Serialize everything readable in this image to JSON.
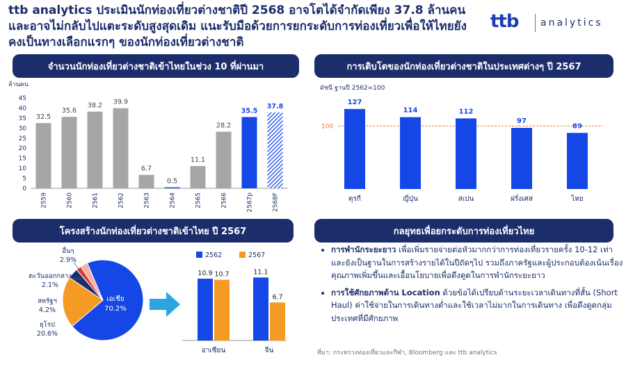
{
  "headline": "ttb analytics ประเมินนักท่องเที่ยวต่างชาติปี 2568 อาจโตได้จำกัดเพียง 37.8 ล้านคน และอาจไม่กลับไปแตะระดับสูงสุดเดิม แนะรับมือด้วยการยกระดับการท่องเที่ยวเพื่อให้ไทยยังคงเป็นทางเลือกแรกๆ ของนักท่องเที่ยวต่างชาติ",
  "logo": {
    "brand": "ttb",
    "product": "analytics"
  },
  "panels": {
    "p1_title": "จำนวนนักท่องเที่ยวต่างชาติเข้าไทยในช่วง 10 ที่ผ่านมา",
    "p2_title": "การเติบโตของนักท่องเที่ยวต่างชาติในประเทศต่างๆ ปี 2567",
    "p3_title": "โครงสร้างนักท่องเที่ยวต่างชาติเข้าไทย ปี 2567",
    "p4_title": "กลยุทธเพื่อยกระดับการท่องเที่ยวไทย"
  },
  "strategy": {
    "item1_bold": "การพำนักระยะยาว",
    "item1_text": " เพื่อเพิ่มรายจ่ายต่อหัวมากกว่าการท่องเที่ยวรายครั้ง 10-12 เท่า และยังเป็นฐานในการสร้างรายได้ในปีถัดๆไป รวมถึงภาครัฐและผู้ประกอบต้องเน้นเรื่องคุณภาพเพิ่มขึ้นและเอื้อนโยบายเพื่อดึงดูดในการพำนักระยะยาว",
    "item2_bold": "การใช้ศักยภาพด้าน Location",
    "item2_text": " ด้วยข้อได้เปรียบด้านระยะเวลาเดินทางที่สั้น (Short Haul) ค่าใช้จ่ายในการเดินทางต่ำและใช้เวลาไม่มากในการเดินทาง เพื่อดึงดูดกลุ่มประเทศที่มีศักยภาพ"
  },
  "source": "ที่มา: กระทรวงท่องเที่ยวและกีฬา, Bloomberg และ ttb analytics",
  "colors": {
    "navy": "#1c2d6b",
    "blue": "#1447e6",
    "gray": "#a6a6a6",
    "orange": "#f59a23",
    "red": "#e03c31",
    "lightblue": "#2aa5e0"
  },
  "chart_data": [
    {
      "type": "bar",
      "ylabel": "ล้านคน",
      "ylim": [
        0,
        45
      ],
      "yticks": [
        0,
        5,
        10,
        15,
        20,
        25,
        30,
        35,
        40,
        45
      ],
      "categories": [
        "2559",
        "2560",
        "2561",
        "2562",
        "2563",
        "2564",
        "2565",
        "2566",
        "2567p",
        "2568F"
      ],
      "values": [
        32.5,
        35.6,
        38.2,
        39.9,
        6.7,
        0.5,
        11.1,
        28.2,
        35.5,
        37.8
      ],
      "labels": [
        "32.5",
        "35.6",
        "38.2",
        "39.9",
        "6.7",
        "0.5",
        "11.1",
        "28.2",
        "35.5",
        "37.8"
      ],
      "grid": false
    },
    {
      "type": "bar",
      "note": "ดัชนี ฐานปี 2562=100",
      "categories": [
        "ตุรกี",
        "ญี่ปุ่น",
        "สเปน",
        "ฝรั่งเศส",
        "ไทย"
      ],
      "values": [
        127,
        114,
        112,
        97,
        89
      ],
      "labels": [
        "127",
        "114",
        "112",
        "97",
        "89"
      ],
      "reference": 100,
      "reference_label": "100",
      "ylim": [
        0,
        140
      ]
    },
    {
      "type": "pie",
      "slices": [
        {
          "label": "เอเชีย",
          "value": 70.2,
          "text": "70.2%"
        },
        {
          "label": "ยุโรป",
          "value": 20.6,
          "text": "20.6%"
        },
        {
          "label": "สหรัฐฯ",
          "value": 4.2,
          "text": "4.2%"
        },
        {
          "label": "ตะวันออกกลาง",
          "value": 2.1,
          "text": "2.1%"
        },
        {
          "label": "อื่นๆ",
          "value": 2.9,
          "text": "2.9%"
        }
      ]
    },
    {
      "type": "bar",
      "categories": [
        "อาเซียน",
        "จีน"
      ],
      "series": [
        {
          "name": "2562",
          "values": [
            10.9,
            11.1
          ],
          "labels": [
            "10.9",
            "11.1"
          ]
        },
        {
          "name": "2567",
          "values": [
            10.7,
            6.7
          ],
          "labels": [
            "10.7",
            "6.7"
          ]
        }
      ],
      "ylim": [
        0,
        12
      ]
    }
  ]
}
